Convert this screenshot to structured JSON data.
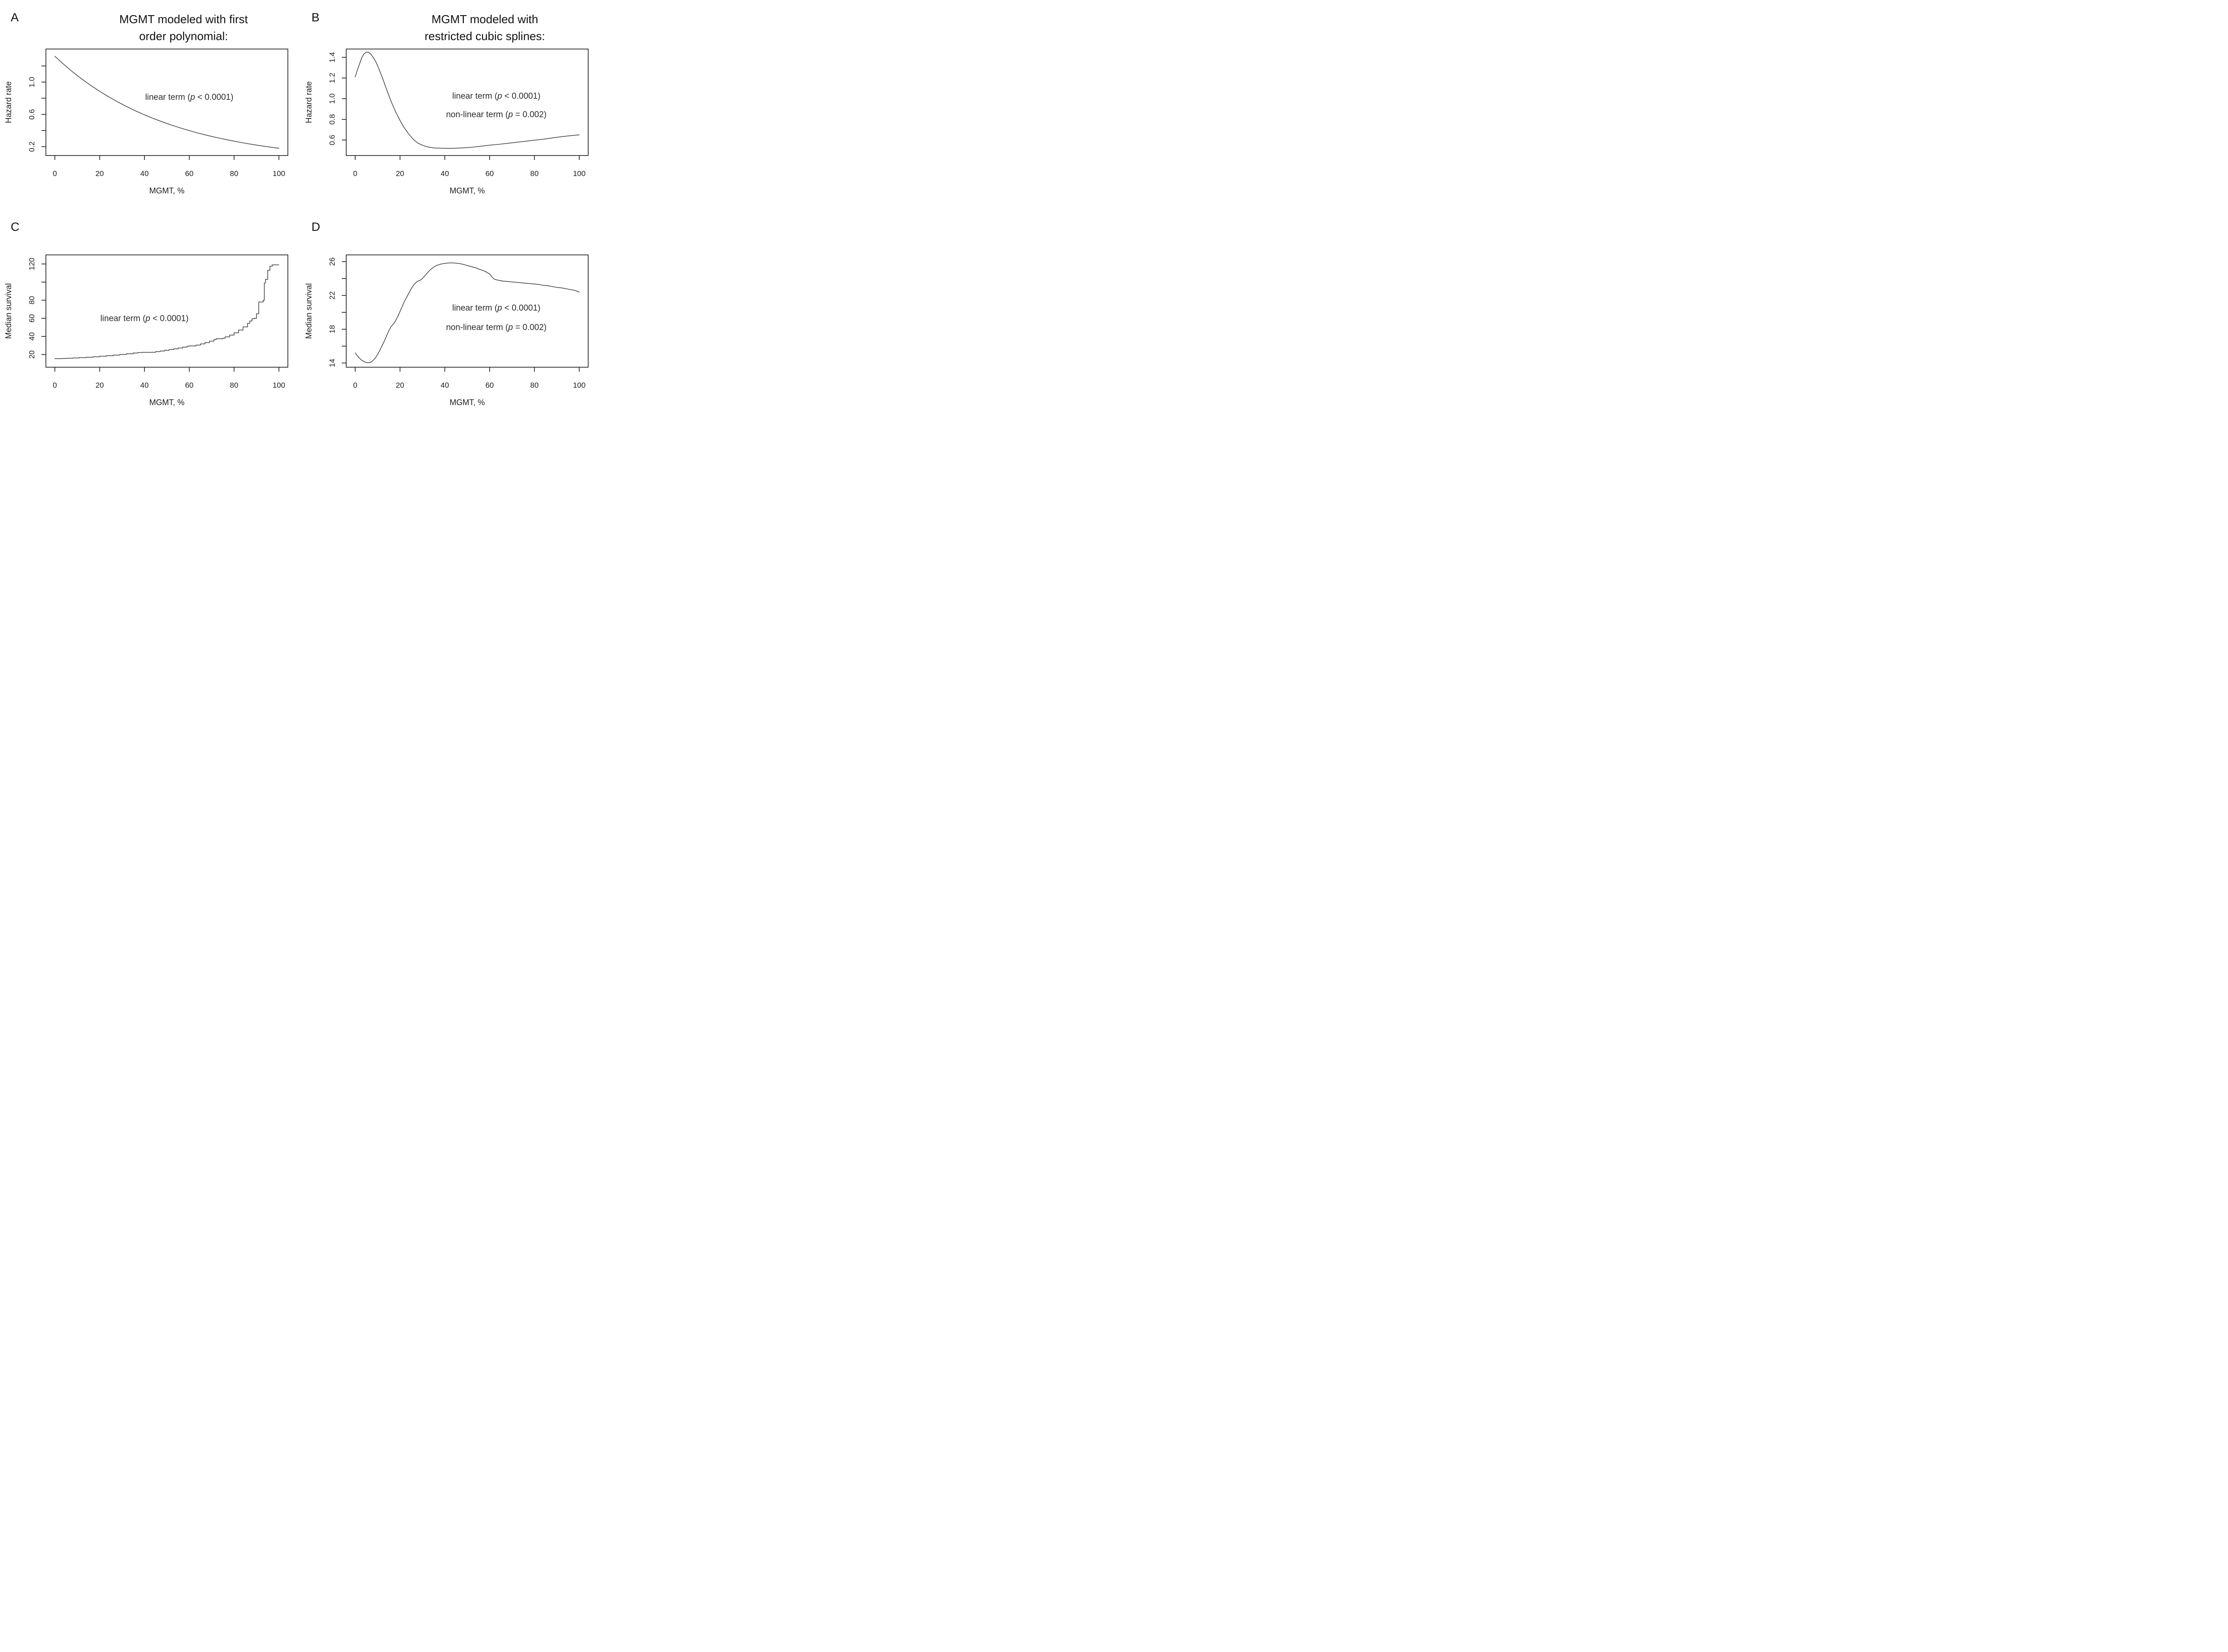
{
  "figure": {
    "background": "#ffffff",
    "axis_color": "#1c1c1c",
    "curve_color": "#3e3e3e",
    "text_color": "#1c1c1c",
    "annotation_color": "#2b2b2b"
  },
  "chart_data": [
    {
      "id": "A",
      "letter": "A",
      "type": "line",
      "title": "MGMT modeled with first order polynomial:",
      "title_lines": [
        "MGMT modeled with first",
        "order polynomial:"
      ],
      "xlabel": "MGMT, %",
      "ylabel": "Hazard rate",
      "xlim": [
        -4,
        104
      ],
      "ylim": [
        0.09,
        1.41
      ],
      "x_ticks": [
        {
          "v": 0,
          "label": "0"
        },
        {
          "v": 20,
          "label": "20"
        },
        {
          "v": 40,
          "label": "40"
        },
        {
          "v": 60,
          "label": "60"
        },
        {
          "v": 80,
          "label": "80"
        },
        {
          "v": 100,
          "label": "100"
        }
      ],
      "y_ticks": [
        {
          "v": 0.2,
          "label": "0.2"
        },
        {
          "v": 0.4,
          "label": ""
        },
        {
          "v": 0.6,
          "label": "0.6"
        },
        {
          "v": 0.8,
          "label": ""
        },
        {
          "v": 1.0,
          "label": "1.0"
        },
        {
          "v": 1.2,
          "label": ""
        }
      ],
      "annotations": [
        {
          "x": 60,
          "y": 0.78,
          "parts": [
            {
              "t": "linear term (",
              "i": false
            },
            {
              "t": "p",
              "i": true
            },
            {
              "t": " < 0.0001)",
              "i": false
            }
          ]
        }
      ],
      "step": false,
      "points": [
        [
          0,
          1.32
        ],
        [
          4,
          1.219
        ],
        [
          8,
          1.125
        ],
        [
          12,
          1.039
        ],
        [
          16,
          0.959
        ],
        [
          20,
          0.886
        ],
        [
          24,
          0.818
        ],
        [
          28,
          0.755
        ],
        [
          32,
          0.697
        ],
        [
          36,
          0.644
        ],
        [
          40,
          0.594
        ],
        [
          44,
          0.549
        ],
        [
          48,
          0.507
        ],
        [
          52,
          0.468
        ],
        [
          56,
          0.432
        ],
        [
          60,
          0.399
        ],
        [
          64,
          0.368
        ],
        [
          68,
          0.34
        ],
        [
          72,
          0.314
        ],
        [
          76,
          0.29
        ],
        [
          80,
          0.268
        ],
        [
          84,
          0.247
        ],
        [
          88,
          0.228
        ],
        [
          92,
          0.211
        ],
        [
          96,
          0.195
        ],
        [
          100,
          0.18
        ]
      ]
    },
    {
      "id": "B",
      "letter": "B",
      "type": "line",
      "title": "MGMT modeled with restricted cubic splines:",
      "title_lines": [
        "MGMT modeled with",
        "restricted cubic splines:"
      ],
      "xlabel": "MGMT, %",
      "ylabel": "Hazard rate",
      "xlim": [
        -4,
        104
      ],
      "ylim": [
        0.45,
        1.48
      ],
      "x_ticks": [
        {
          "v": 0,
          "label": "0"
        },
        {
          "v": 20,
          "label": "20"
        },
        {
          "v": 40,
          "label": "40"
        },
        {
          "v": 60,
          "label": "60"
        },
        {
          "v": 80,
          "label": "80"
        },
        {
          "v": 100,
          "label": "100"
        }
      ],
      "y_ticks": [
        {
          "v": 0.6,
          "label": "0.6"
        },
        {
          "v": 0.8,
          "label": "0.8"
        },
        {
          "v": 1.0,
          "label": "1.0"
        },
        {
          "v": 1.2,
          "label": "1.2"
        },
        {
          "v": 1.4,
          "label": "1.4"
        }
      ],
      "annotations": [
        {
          "x": 63,
          "y": 1.0,
          "parts": [
            {
              "t": "linear term (",
              "i": false
            },
            {
              "t": "p",
              "i": true
            },
            {
              "t": " < 0.0001)",
              "i": false
            }
          ]
        },
        {
          "x": 63,
          "y": 0.82,
          "parts": [
            {
              "t": "non-linear term (",
              "i": false
            },
            {
              "t": "p",
              "i": true
            },
            {
              "t": " = 0.002)",
              "i": false
            }
          ]
        }
      ],
      "step": false,
      "points": [
        [
          0,
          1.21
        ],
        [
          1,
          1.28
        ],
        [
          2,
          1.34
        ],
        [
          3,
          1.4
        ],
        [
          4,
          1.435
        ],
        [
          5,
          1.45
        ],
        [
          6,
          1.448
        ],
        [
          7,
          1.43
        ],
        [
          8,
          1.4
        ],
        [
          9,
          1.365
        ],
        [
          10,
          1.32
        ],
        [
          12,
          1.21
        ],
        [
          14,
          1.09
        ],
        [
          16,
          0.975
        ],
        [
          18,
          0.875
        ],
        [
          20,
          0.79
        ],
        [
          22,
          0.715
        ],
        [
          24,
          0.655
        ],
        [
          26,
          0.605
        ],
        [
          28,
          0.57
        ],
        [
          30,
          0.55
        ],
        [
          32,
          0.535
        ],
        [
          34,
          0.527
        ],
        [
          36,
          0.522
        ],
        [
          40,
          0.52
        ],
        [
          44,
          0.52
        ],
        [
          48,
          0.524
        ],
        [
          52,
          0.53
        ],
        [
          56,
          0.54
        ],
        [
          60,
          0.55
        ],
        [
          64,
          0.558
        ],
        [
          68,
          0.568
        ],
        [
          72,
          0.578
        ],
        [
          76,
          0.588
        ],
        [
          80,
          0.598
        ],
        [
          84,
          0.608
        ],
        [
          88,
          0.62
        ],
        [
          92,
          0.632
        ],
        [
          96,
          0.642
        ],
        [
          100,
          0.65
        ]
      ]
    },
    {
      "id": "C",
      "letter": "C",
      "type": "line",
      "title": "",
      "title_lines": [],
      "xlabel": "MGMT, %",
      "ylabel": "Median survival",
      "xlim": [
        -4,
        104
      ],
      "ylim": [
        6,
        130
      ],
      "x_ticks": [
        {
          "v": 0,
          "label": "0"
        },
        {
          "v": 20,
          "label": "20"
        },
        {
          "v": 40,
          "label": "40"
        },
        {
          "v": 60,
          "label": "60"
        },
        {
          "v": 80,
          "label": "80"
        },
        {
          "v": 100,
          "label": "100"
        }
      ],
      "y_ticks": [
        {
          "v": 20,
          "label": "20"
        },
        {
          "v": 40,
          "label": "40"
        },
        {
          "v": 60,
          "label": "60"
        },
        {
          "v": 80,
          "label": "80"
        },
        {
          "v": 100,
          "label": ""
        },
        {
          "v": 120,
          "label": "120"
        }
      ],
      "annotations": [
        {
          "x": 40,
          "y": 57,
          "parts": [
            {
              "t": "linear term (",
              "i": false
            },
            {
              "t": "p",
              "i": true
            },
            {
              "t": " < 0.0001)",
              "i": false
            }
          ]
        }
      ],
      "step": true,
      "points": [
        [
          0,
          15.5
        ],
        [
          3,
          15.6
        ],
        [
          5,
          15.9
        ],
        [
          8,
          16.2
        ],
        [
          11,
          16.6
        ],
        [
          14,
          17.0
        ],
        [
          17,
          17.5
        ],
        [
          20,
          18.1
        ],
        [
          23,
          18.7
        ],
        [
          26,
          19.4
        ],
        [
          29,
          20.1
        ],
        [
          32,
          20.9
        ],
        [
          35,
          21.7
        ],
        [
          37,
          22.2
        ],
        [
          39,
          22.4
        ],
        [
          43,
          22.5
        ],
        [
          45,
          23.2
        ],
        [
          47,
          23.9
        ],
        [
          49,
          24.7
        ],
        [
          51,
          25.5
        ],
        [
          53,
          26.3
        ],
        [
          55,
          27.2
        ],
        [
          57,
          28.2
        ],
        [
          59,
          29.2
        ],
        [
          60,
          29.5
        ],
        [
          63,
          30.4
        ],
        [
          65,
          31.8
        ],
        [
          67,
          33.2
        ],
        [
          69,
          34.8
        ],
        [
          71,
          36.5
        ],
        [
          72,
          37.5
        ],
        [
          75,
          38.0
        ],
        [
          76,
          39.5
        ],
        [
          78,
          41.5
        ],
        [
          80,
          44.0
        ],
        [
          82,
          47.0
        ],
        [
          84,
          50.5
        ],
        [
          86,
          54.5
        ],
        [
          87,
          57.0
        ],
        [
          88,
          59.5
        ],
        [
          89,
          60.0
        ],
        [
          90,
          65.0
        ],
        [
          91,
          78.0
        ],
        [
          93,
          80.0
        ],
        [
          93.5,
          99.0
        ],
        [
          94,
          103.0
        ],
        [
          95,
          113.0
        ],
        [
          96,
          117.5
        ],
        [
          97,
          119.0
        ],
        [
          100,
          119.0
        ]
      ]
    },
    {
      "id": "D",
      "letter": "D",
      "type": "line",
      "title": "",
      "title_lines": [],
      "xlabel": "MGMT, %",
      "ylabel": "Median survival",
      "xlim": [
        -4,
        104
      ],
      "ylim": [
        13.5,
        26.8
      ],
      "x_ticks": [
        {
          "v": 0,
          "label": "0"
        },
        {
          "v": 20,
          "label": "20"
        },
        {
          "v": 40,
          "label": "40"
        },
        {
          "v": 60,
          "label": "60"
        },
        {
          "v": 80,
          "label": "80"
        },
        {
          "v": 100,
          "label": "100"
        }
      ],
      "y_ticks": [
        {
          "v": 14,
          "label": "14"
        },
        {
          "v": 16,
          "label": ""
        },
        {
          "v": 18,
          "label": "18"
        },
        {
          "v": 20,
          "label": ""
        },
        {
          "v": 22,
          "label": "22"
        },
        {
          "v": 24,
          "label": ""
        },
        {
          "v": 26,
          "label": "26"
        }
      ],
      "annotations": [
        {
          "x": 63,
          "y": 20.2,
          "parts": [
            {
              "t": "linear term (",
              "i": false
            },
            {
              "t": "p",
              "i": true
            },
            {
              "t": " < 0.0001)",
              "i": false
            }
          ]
        },
        {
          "x": 63,
          "y": 17.9,
          "parts": [
            {
              "t": "non-linear term (",
              "i": false
            },
            {
              "t": "p",
              "i": true
            },
            {
              "t": " = 0.002)",
              "i": false
            }
          ]
        }
      ],
      "step": false,
      "points": [
        [
          0,
          15.2
        ],
        [
          1,
          14.85
        ],
        [
          2,
          14.55
        ],
        [
          3,
          14.3
        ],
        [
          4,
          14.15
        ],
        [
          5,
          14.05
        ],
        [
          6,
          14.02
        ],
        [
          7,
          14.1
        ],
        [
          8,
          14.3
        ],
        [
          9,
          14.6
        ],
        [
          10,
          15.0
        ],
        [
          11,
          15.5
        ],
        [
          12,
          16.05
        ],
        [
          13,
          16.6
        ],
        [
          14,
          17.2
        ],
        [
          15,
          17.8
        ],
        [
          16,
          18.3
        ],
        [
          17,
          18.6
        ],
        [
          18,
          19.0
        ],
        [
          19,
          19.5
        ],
        [
          20,
          20.1
        ],
        [
          21,
          20.7
        ],
        [
          22,
          21.3
        ],
        [
          23,
          21.8
        ],
        [
          24,
          22.3
        ],
        [
          25,
          22.8
        ],
        [
          26,
          23.2
        ],
        [
          27,
          23.5
        ],
        [
          28,
          23.7
        ],
        [
          29,
          23.8
        ],
        [
          30,
          24.0
        ],
        [
          31,
          24.3
        ],
        [
          32,
          24.6
        ],
        [
          33,
          24.9
        ],
        [
          34,
          25.15
        ],
        [
          35,
          25.35
        ],
        [
          36,
          25.5
        ],
        [
          38,
          25.7
        ],
        [
          40,
          25.8
        ],
        [
          42,
          25.85
        ],
        [
          44,
          25.85
        ],
        [
          46,
          25.8
        ],
        [
          48,
          25.7
        ],
        [
          50,
          25.55
        ],
        [
          52,
          25.4
        ],
        [
          54,
          25.25
        ],
        [
          56,
          25.05
        ],
        [
          58,
          24.85
        ],
        [
          60,
          24.55
        ],
        [
          61,
          24.2
        ],
        [
          62,
          23.95
        ],
        [
          63,
          23.85
        ],
        [
          64,
          23.8
        ],
        [
          66,
          23.7
        ],
        [
          68,
          23.65
        ],
        [
          70,
          23.6
        ],
        [
          72,
          23.55
        ],
        [
          74,
          23.5
        ],
        [
          76,
          23.45
        ],
        [
          78,
          23.4
        ],
        [
          80,
          23.35
        ],
        [
          82,
          23.3
        ],
        [
          84,
          23.2
        ],
        [
          86,
          23.15
        ],
        [
          88,
          23.05
        ],
        [
          90,
          22.95
        ],
        [
          92,
          22.9
        ],
        [
          94,
          22.8
        ],
        [
          96,
          22.7
        ],
        [
          98,
          22.6
        ],
        [
          99,
          22.5
        ],
        [
          100,
          22.4
        ]
      ]
    }
  ]
}
